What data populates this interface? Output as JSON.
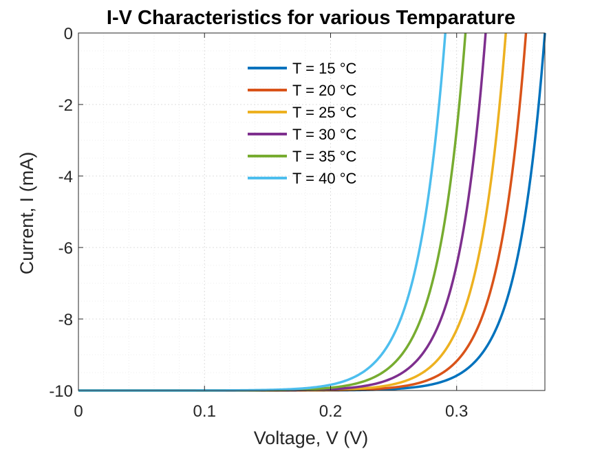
{
  "chart_data": {
    "type": "line",
    "title": "I-V Characteristics for various Temparature",
    "xlabel": "Voltage, V (V)",
    "ylabel": "Current, I (mA)",
    "xlim": [
      0,
      0.37
    ],
    "ylim": [
      -10,
      0
    ],
    "xticks": [
      "0",
      "0.1",
      "0.2",
      "0.3"
    ],
    "yticks": [
      "0",
      "-2",
      "-4",
      "-6",
      "-8",
      "-10"
    ],
    "grid": true,
    "minor_grid": true,
    "legend_position": "top-center",
    "isc_mA": -10,
    "series": [
      {
        "name": "T = 15 °C",
        "color": "#0072BD",
        "voc": 0.37,
        "points": [
          [
            0.0,
            -10
          ],
          [
            0.25,
            -9.98
          ],
          [
            0.3,
            -9.55
          ],
          [
            0.33,
            -8.2
          ],
          [
            0.35,
            -5.5
          ],
          [
            0.36,
            -3.2
          ],
          [
            0.37,
            0
          ]
        ]
      },
      {
        "name": "T = 20 °C",
        "color": "#D95319",
        "voc": 0.355,
        "points": [
          [
            0.0,
            -10
          ],
          [
            0.24,
            -9.98
          ],
          [
            0.29,
            -9.5
          ],
          [
            0.32,
            -7.9
          ],
          [
            0.34,
            -4.8
          ],
          [
            0.35,
            -2.4
          ],
          [
            0.355,
            0
          ]
        ]
      },
      {
        "name": "T = 25 °C",
        "color": "#EDB120",
        "voc": 0.339,
        "points": [
          [
            0.0,
            -10
          ],
          [
            0.23,
            -9.98
          ],
          [
            0.28,
            -9.45
          ],
          [
            0.31,
            -7.6
          ],
          [
            0.325,
            -5.2
          ],
          [
            0.335,
            -2.6
          ],
          [
            0.339,
            0
          ]
        ]
      },
      {
        "name": "T = 30 °C",
        "color": "#7E2F8E",
        "voc": 0.323,
        "points": [
          [
            0.0,
            -10
          ],
          [
            0.22,
            -9.97
          ],
          [
            0.27,
            -9.3
          ],
          [
            0.3,
            -7.3
          ],
          [
            0.31,
            -5.4
          ],
          [
            0.32,
            -2.3
          ],
          [
            0.323,
            0
          ]
        ]
      },
      {
        "name": "T = 35 °C",
        "color": "#77AC30",
        "voc": 0.307,
        "points": [
          [
            0.0,
            -10
          ],
          [
            0.21,
            -9.96
          ],
          [
            0.26,
            -9.2
          ],
          [
            0.28,
            -7.8
          ],
          [
            0.295,
            -5.2
          ],
          [
            0.305,
            -2.1
          ],
          [
            0.307,
            0
          ]
        ]
      },
      {
        "name": "T = 40 °C",
        "color": "#4DBEEE",
        "voc": 0.291,
        "points": [
          [
            0.0,
            -10
          ],
          [
            0.2,
            -9.95
          ],
          [
            0.24,
            -9.2
          ],
          [
            0.26,
            -8.0
          ],
          [
            0.28,
            -5.1
          ],
          [
            0.29,
            -2.4
          ],
          [
            0.291,
            0
          ]
        ]
      }
    ]
  }
}
